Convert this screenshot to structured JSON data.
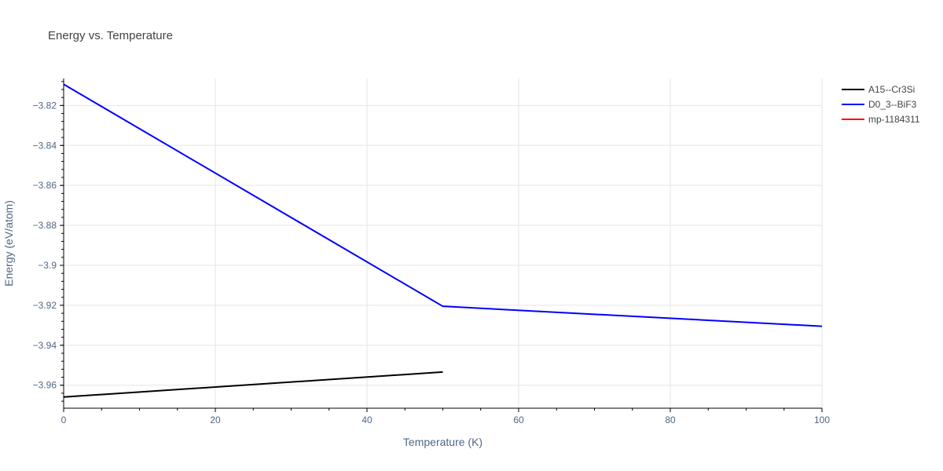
{
  "chart_data": {
    "type": "line",
    "title": "Energy vs. Temperature",
    "xlabel": "Temperature (K)",
    "ylabel": "Energy (eV/atom)",
    "xlim": [
      0,
      100
    ],
    "ylim": [
      -3.9715,
      -3.8065
    ],
    "xticks": [
      0,
      20,
      40,
      60,
      80,
      100
    ],
    "xtick_labels": [
      "0",
      "20",
      "40",
      "60",
      "80",
      "100"
    ],
    "yticks": [
      -3.96,
      -3.94,
      -3.92,
      -3.9,
      -3.88,
      -3.86,
      -3.84,
      -3.82
    ],
    "ytick_labels": [
      "−3.96",
      "−3.94",
      "−3.92",
      "−3.9",
      "−3.88",
      "−3.86",
      "−3.84",
      "−3.82"
    ],
    "x_minor_step": 5,
    "y_minor_step": 0.004,
    "grid": true,
    "legend_position": "top-right",
    "series": [
      {
        "name": "A15--Cr3Si",
        "color": "#000000",
        "x": [
          0,
          50
        ],
        "y": [
          -3.9659,
          -3.9534
        ]
      },
      {
        "name": "D0_3--BiF3",
        "color": "#0000ff",
        "x": [
          0,
          50,
          100
        ],
        "y": [
          -3.8094,
          -3.9205,
          -3.9305
        ]
      },
      {
        "name": "mp-1184311",
        "color": "#ff0000",
        "x": [],
        "y": []
      }
    ]
  }
}
